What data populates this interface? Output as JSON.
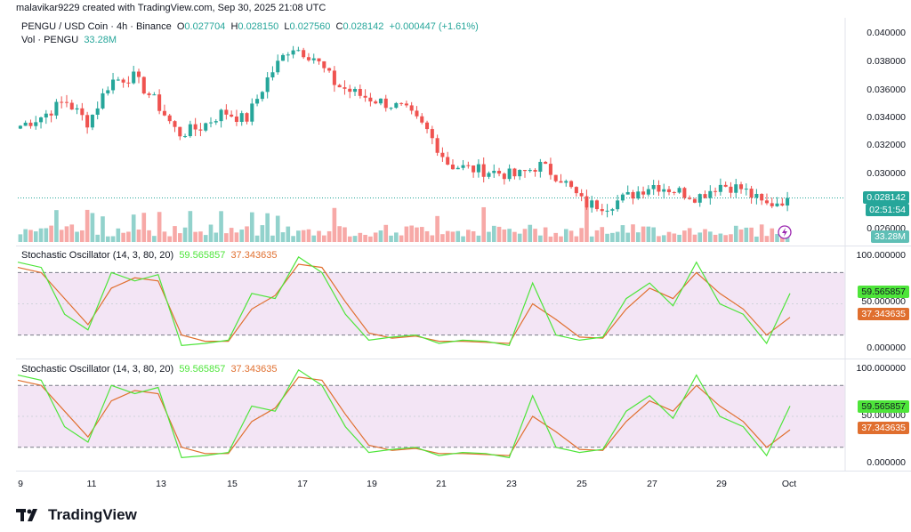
{
  "caption": "malavikar9229 created with TradingView.com, Sep 30, 2025 21:08 UTC",
  "main_legend": {
    "symbol": "PENGU / USD Coin · 4h · Binance",
    "o_label": "O",
    "o": "0.027704",
    "h_label": "H",
    "h": "0.028150",
    "l_label": "L",
    "l": "0.027560",
    "c_label": "C",
    "c": "0.028142",
    "change": "+0.000447 (+1.61%)",
    "vol_label": "Vol · PENGU",
    "vol": "33.28M"
  },
  "price_axis": [
    "0.040000",
    "0.038000",
    "0.036000",
    "0.034000",
    "0.032000",
    "0.030000",
    "0.026000"
  ],
  "price_tag": "0.028142",
  "countdown_tag": "02:51:54",
  "volume_tag": "33.28M",
  "stoch_panels": [
    {
      "name": "Stochastic Oscillator (14, 3, 80, 20)",
      "k": "59.565857",
      "d": "37.343635",
      "axis": [
        "100.000000",
        "50.000000",
        "0.000000"
      ]
    },
    {
      "name": "Stochastic Oscillator (14, 3, 80, 20)",
      "k": "59.565857",
      "d": "37.343635",
      "axis": [
        "100.000000",
        "50.000000",
        "0.000000"
      ]
    }
  ],
  "time_axis": [
    "9",
    "11",
    "13",
    "15",
    "17",
    "19",
    "21",
    "23",
    "25",
    "27",
    "29",
    "Oct"
  ],
  "brand": "TradingView",
  "colors": {
    "up": "#26a69a",
    "down": "#ef5350",
    "stoch_k": "#4ee53a",
    "stoch_d": "#e06f2f",
    "band_fill": "#f3e5f5"
  },
  "chart_data": {
    "type": "candlestick",
    "x": [
      "9",
      "11",
      "13",
      "15",
      "17",
      "19",
      "21",
      "23",
      "25",
      "27",
      "29",
      "Oct"
    ],
    "close_path": [
      0.0333,
      0.034,
      0.0351,
      0.0335,
      0.0365,
      0.0368,
      0.035,
      0.0327,
      0.0332,
      0.0343,
      0.0337,
      0.0368,
      0.039,
      0.0382,
      0.0362,
      0.0355,
      0.035,
      0.0345,
      0.033,
      0.0305,
      0.0302,
      0.03,
      0.0297,
      0.0305,
      0.0295,
      0.0277,
      0.0276,
      0.0283,
      0.0291,
      0.0287,
      0.0282,
      0.0291,
      0.0288,
      0.0276,
      0.0281
    ],
    "ylim": [
      0.025,
      0.041
    ],
    "last_close": 0.028142,
    "stoch_k": [
      90,
      85,
      40,
      25,
      80,
      72,
      78,
      10,
      12,
      15,
      60,
      55,
      95,
      80,
      40,
      15,
      18,
      20,
      12,
      15,
      14,
      10,
      70,
      20,
      15,
      18,
      55,
      70,
      48,
      90,
      50,
      40,
      12,
      60
    ],
    "stoch_d": [
      85,
      80,
      55,
      30,
      65,
      75,
      72,
      20,
      14,
      14,
      45,
      58,
      88,
      85,
      52,
      22,
      17,
      19,
      14,
      14,
      13,
      12,
      50,
      35,
      18,
      17,
      45,
      65,
      55,
      80,
      60,
      45,
      20,
      37
    ],
    "stoch_ylim": [
      0,
      100
    ],
    "stoch_bands": [
      80,
      20
    ]
  }
}
